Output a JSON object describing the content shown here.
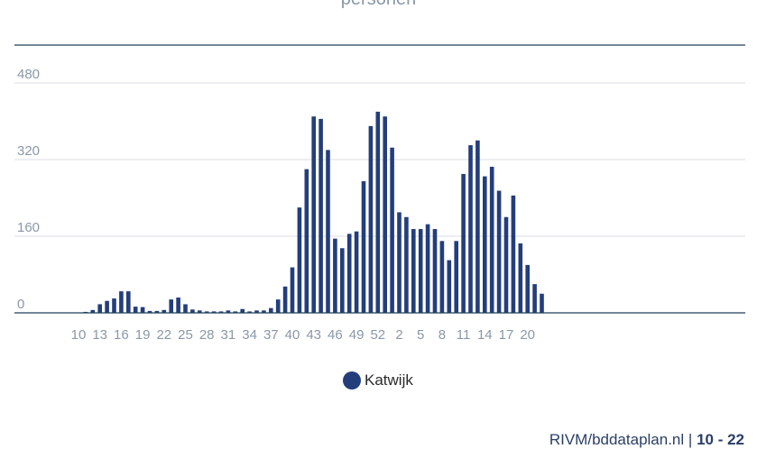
{
  "header": {
    "subtitle": "personen"
  },
  "footer": {
    "source": "RIVM/bddataplan.nl",
    "separator": "|",
    "weeks": "10 - 22"
  },
  "chart_data": {
    "type": "bar",
    "title": "",
    "xlabel": "",
    "ylabel": "",
    "ylim": [
      0,
      480
    ],
    "yticks": [
      0,
      160,
      320,
      480
    ],
    "xticks": [
      "10",
      "13",
      "16",
      "19",
      "22",
      "25",
      "28",
      "31",
      "34",
      "37",
      "40",
      "43",
      "46",
      "49",
      "52",
      "2",
      "5",
      "8",
      "11",
      "14",
      "17",
      "20"
    ],
    "categories": [
      "10",
      "11",
      "12",
      "13",
      "14",
      "15",
      "16",
      "17",
      "18",
      "19",
      "20",
      "21",
      "22",
      "23",
      "24",
      "25",
      "26",
      "27",
      "28",
      "29",
      "30",
      "31",
      "32",
      "33",
      "34",
      "35",
      "36",
      "37",
      "38",
      "39",
      "40",
      "41",
      "42",
      "43",
      "44",
      "45",
      "46",
      "47",
      "48",
      "49",
      "50",
      "51",
      "52",
      "53",
      "1",
      "2",
      "3",
      "4",
      "5",
      "6",
      "7",
      "8",
      "9",
      "10",
      "11",
      "12",
      "13",
      "14",
      "15",
      "16",
      "17",
      "18",
      "19",
      "20",
      "21",
      "22"
    ],
    "series": [
      {
        "name": "Katwijk",
        "color": "#243e7b",
        "values": [
          0,
          2,
          6,
          18,
          25,
          30,
          45,
          45,
          13,
          12,
          4,
          4,
          6,
          28,
          32,
          18,
          7,
          5,
          3,
          3,
          3,
          5,
          3,
          8,
          3,
          5,
          5,
          10,
          28,
          55,
          95,
          220,
          300,
          410,
          405,
          340,
          155,
          135,
          165,
          170,
          275,
          390,
          420,
          410,
          345,
          210,
          200,
          175,
          175,
          185,
          175,
          150,
          110,
          150,
          290,
          350,
          360,
          285,
          305,
          255,
          200,
          245,
          145,
          100,
          60,
          40
        ]
      }
    ],
    "legend": {
      "position": "bottom-center",
      "entries": [
        "Katwijk"
      ]
    },
    "grid": true
  }
}
